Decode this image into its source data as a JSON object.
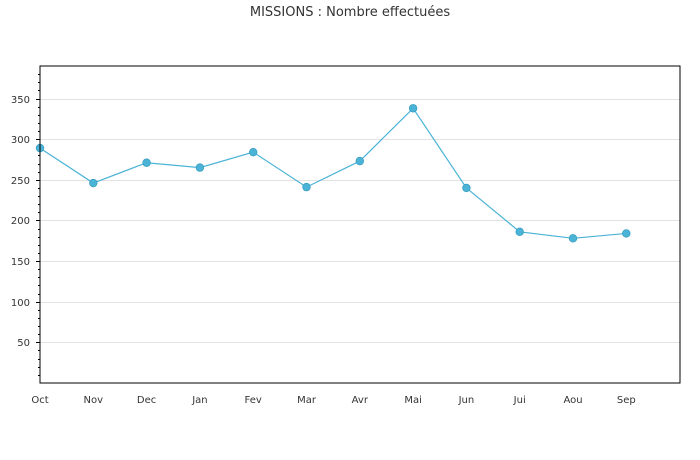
{
  "chart_data": {
    "type": "line",
    "title": "MISSIONS : Nombre effectuées",
    "categories": [
      "Oct",
      "Nov",
      "Dec",
      "Jan",
      "Fev",
      "Mar",
      "Avr",
      "Mai",
      "Jun",
      "Jui",
      "Aou",
      "Sep"
    ],
    "series": [
      {
        "values": [
          289,
          246,
          271,
          265,
          284,
          241,
          273,
          338,
          240,
          186,
          178,
          184
        ],
        "color": "#4bb3d6"
      }
    ],
    "ylim": [
      0,
      390
    ],
    "yticks": [
      50,
      100,
      150,
      200,
      250,
      300,
      350
    ],
    "grid": true,
    "legend": "none"
  }
}
